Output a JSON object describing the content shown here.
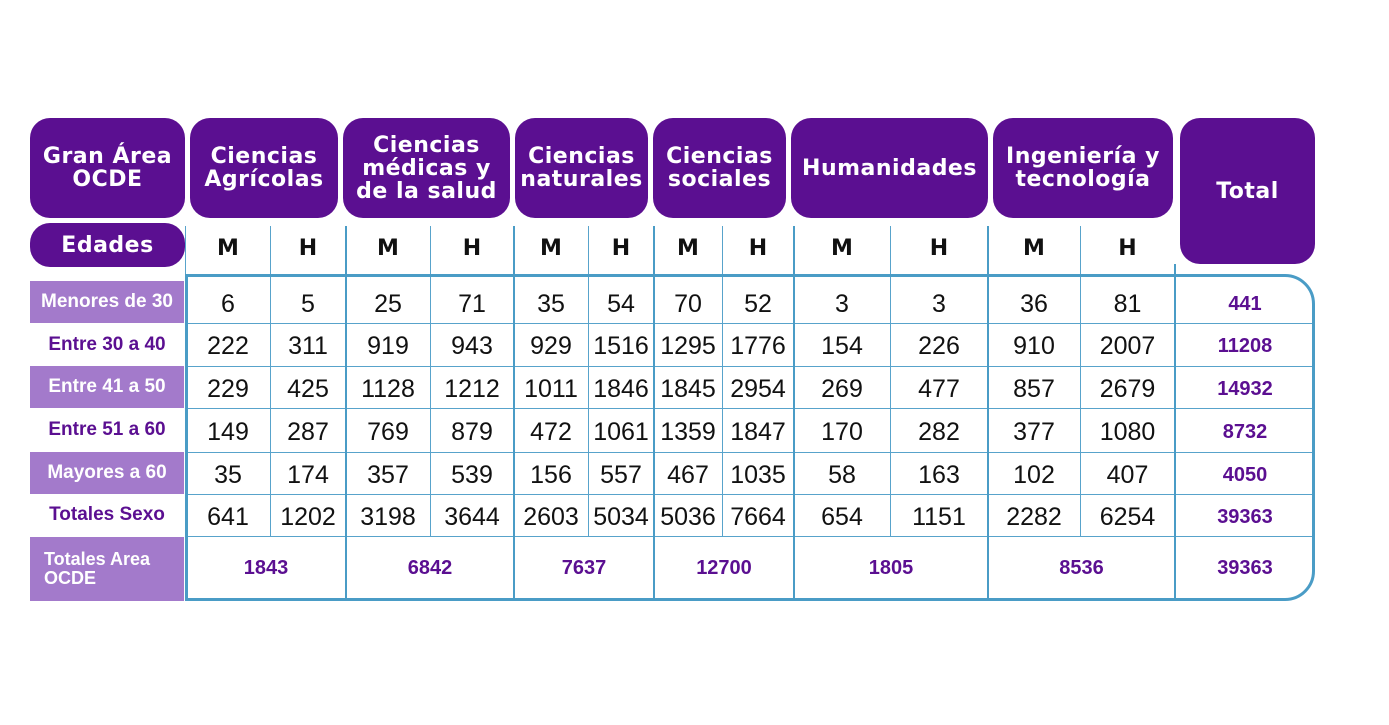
{
  "header": {
    "gran_area": "Gran Área OCDE",
    "edades": "Edades",
    "total": "Total",
    "areas": [
      "Ciencias Agrícolas",
      "Ciencias médicas y de la salud",
      "Ciencias naturales",
      "Ciencias sociales",
      "Humanidades",
      "Ingeniería y tecnología"
    ],
    "sex_labels": {
      "m": "M",
      "h": "H"
    }
  },
  "rows": [
    {
      "label": "Menores de 30",
      "values": [
        "6",
        "5",
        "25",
        "71",
        "35",
        "54",
        "70",
        "52",
        "3",
        "3",
        "36",
        "81"
      ],
      "total": "441"
    },
    {
      "label": "Entre 30 a 40",
      "values": [
        "222",
        "311",
        "919",
        "943",
        "929",
        "1516",
        "1295",
        "1776",
        "154",
        "226",
        "910",
        "2007"
      ],
      "total": "11208"
    },
    {
      "label": "Entre 41 a 50",
      "values": [
        "229",
        "425",
        "1128",
        "1212",
        "1011",
        "1846",
        "1845",
        "2954",
        "269",
        "477",
        "857",
        "2679"
      ],
      "total": "14932"
    },
    {
      "label": "Entre 51 a 60",
      "values": [
        "149",
        "287",
        "769",
        "879",
        "472",
        "1061",
        "1359",
        "1847",
        "170",
        "282",
        "377",
        "1080"
      ],
      "total": "8732"
    },
    {
      "label": "Mayores a 60",
      "values": [
        "35",
        "174",
        "357",
        "539",
        "156",
        "557",
        "467",
        "1035",
        "58",
        "163",
        "102",
        "407"
      ],
      "total": "4050"
    },
    {
      "label": "Totales Sexo",
      "values": [
        "641",
        "1202",
        "3198",
        "3644",
        "2603",
        "5034",
        "5036",
        "7664",
        "654",
        "1151",
        "2282",
        "6254"
      ],
      "total": "39363"
    }
  ],
  "area_totals": {
    "label": "Totales Area OCDE",
    "values": [
      "1843",
      "6842",
      "7637",
      "12700",
      "1805",
      "8536"
    ],
    "total": "39363"
  },
  "colors": {
    "header_purple": "#5b0f91",
    "label_lavender": "#a37acb",
    "grid_blue": "#4a9cc6"
  }
}
